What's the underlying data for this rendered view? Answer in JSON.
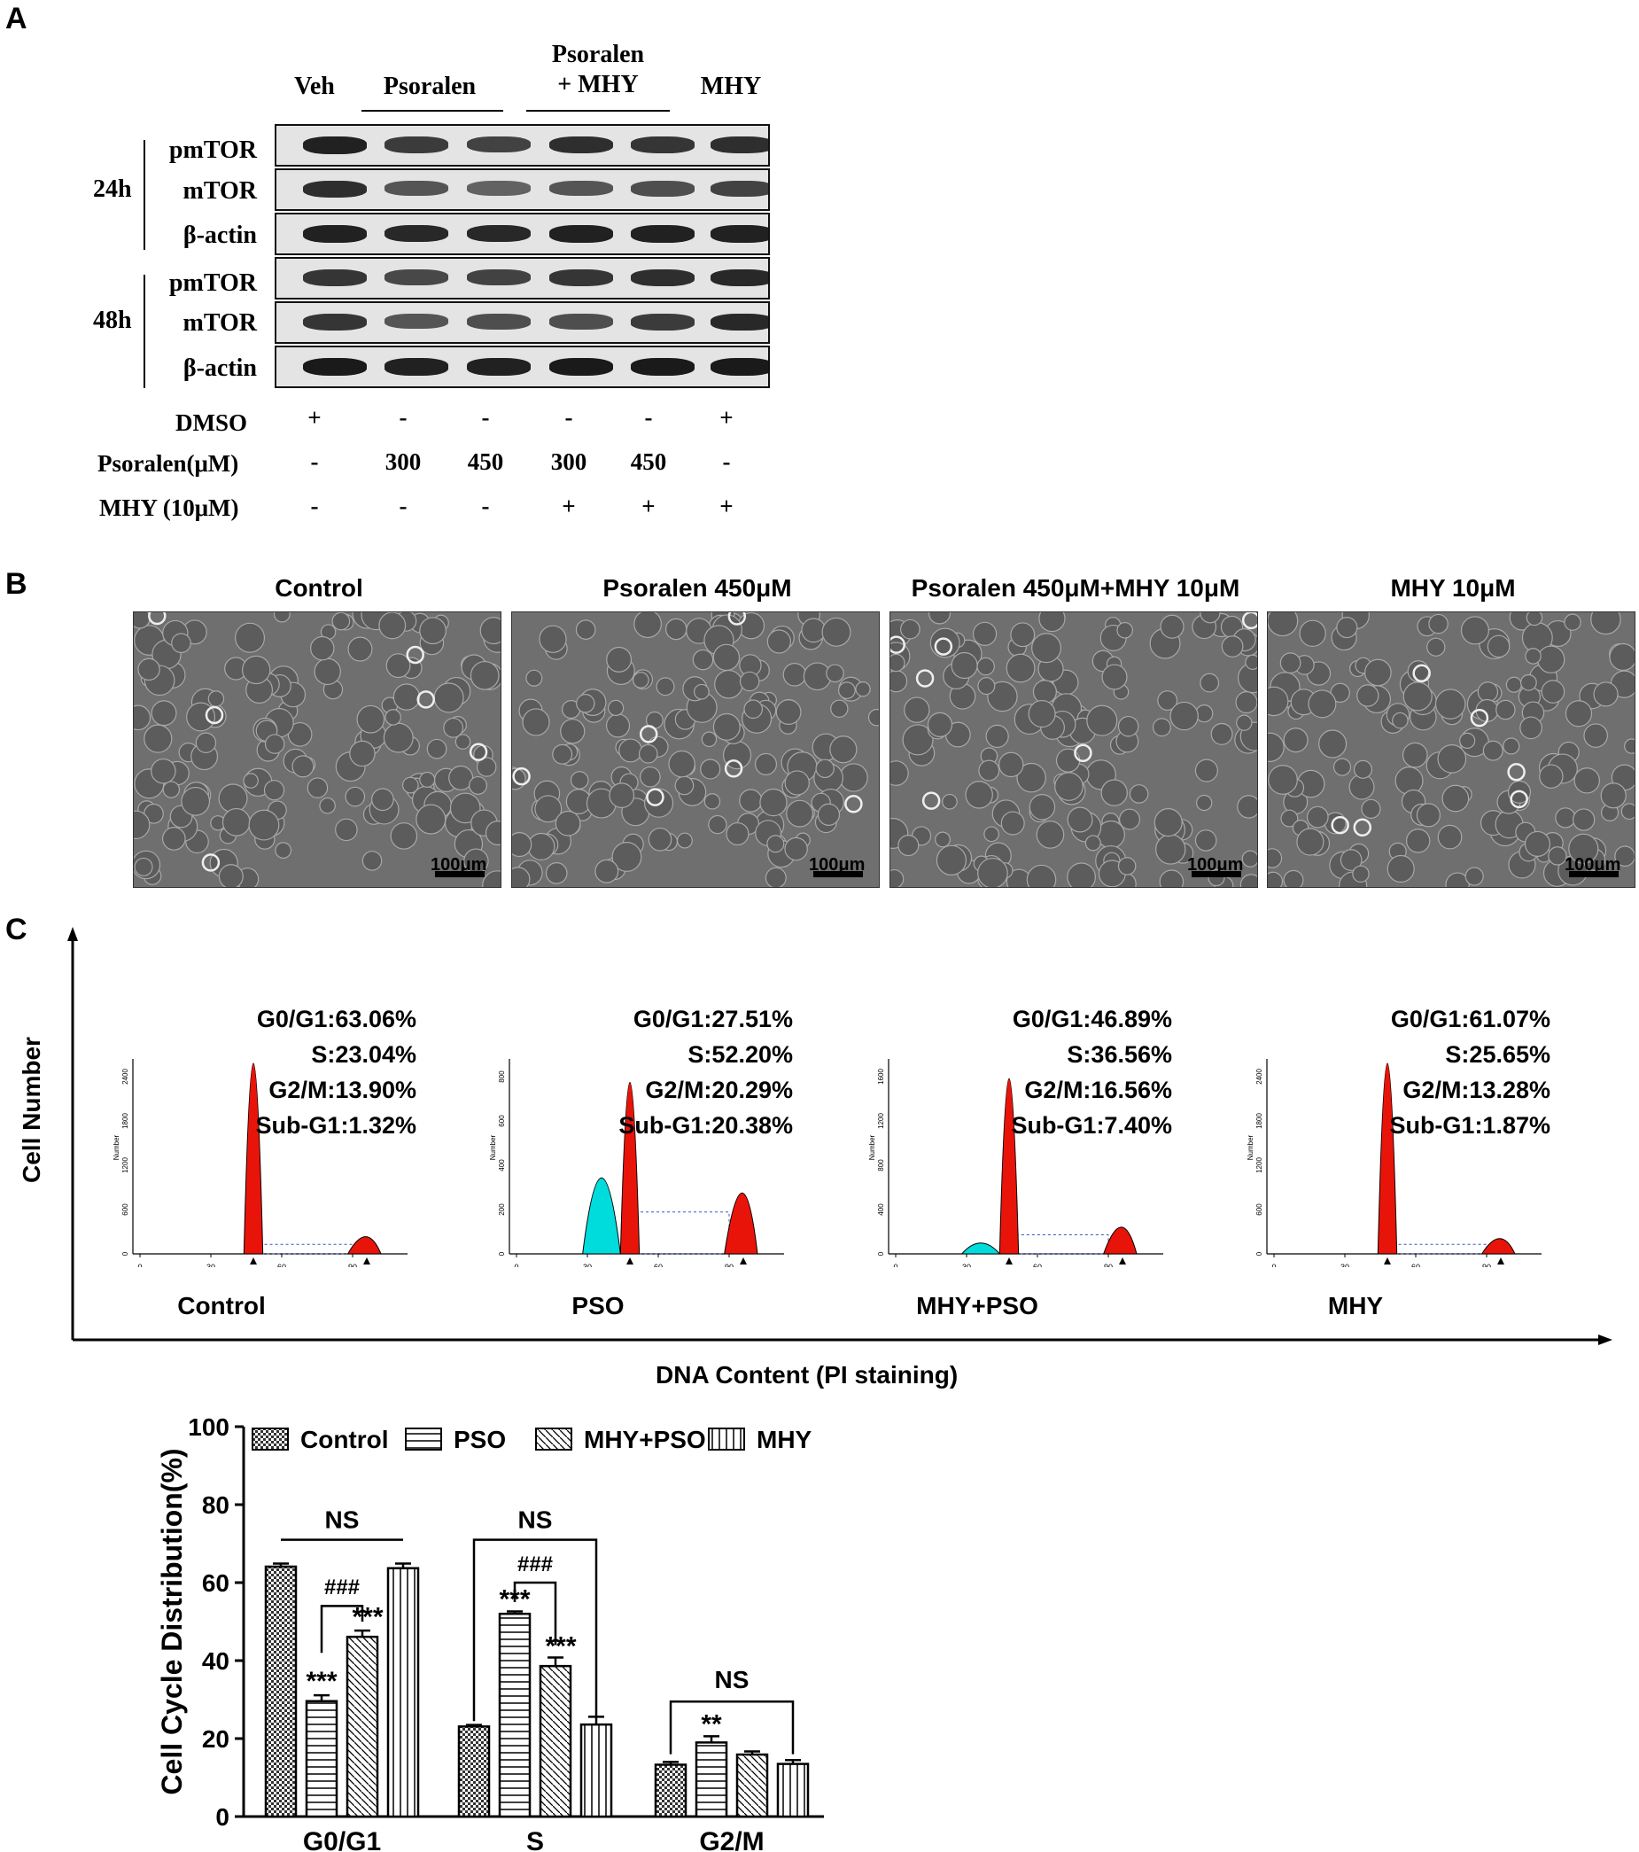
{
  "panelA": {
    "letter": "A",
    "lanes": [
      "Veh",
      "Psoralen",
      "Psoralen",
      "+ MHY",
      "MHY"
    ],
    "rows": [
      "pmTOR",
      "mTOR",
      "β-actin",
      "pmTOR",
      "mTOR",
      "β-actin"
    ],
    "timepoints": [
      "24h",
      "48h"
    ],
    "treatments": {
      "dmso": {
        "label": "DMSO",
        "values": [
          "+",
          "-",
          "-",
          "-",
          "-",
          "+"
        ]
      },
      "psoralen": {
        "label": "Psoralen(μM)",
        "values": [
          "-",
          "300",
          "450",
          "300",
          "450",
          "-"
        ]
      },
      "mhy": {
        "label": "MHY (10μM)",
        "values": [
          "-",
          "-",
          "-",
          "+",
          "+",
          "+"
        ]
      }
    }
  },
  "panelB": {
    "letter": "B",
    "images": [
      {
        "title": "Control",
        "scale": "100μm"
      },
      {
        "title": "Psoralen 450μM",
        "scale": "100μm"
      },
      {
        "title": "Psoralen 450μM+MHY 10μM",
        "scale": "100μm"
      },
      {
        "title": "MHY 10μM",
        "scale": "100μm"
      }
    ]
  },
  "panelC": {
    "letter": "C",
    "y_axis": "Cell Number",
    "x_axis": "DNA Content (PI staining)",
    "x_ticks": [
      "0",
      "30",
      "60",
      "90",
      "120"
    ],
    "y_tick_label": "Number",
    "histograms": [
      {
        "name": "Control",
        "g0g1": "G0/G1:63.06%",
        "s": "S:23.04%",
        "g2m": "G2/M:13.90%",
        "subg1": "Sub-G1:1.32%",
        "y_ticks": [
          "0",
          "600",
          "1200",
          "1800",
          "2400"
        ]
      },
      {
        "name": "PSO",
        "g0g1": "G0/G1:27.51%",
        "s": "S:52.20%",
        "g2m": "G2/M:20.29%",
        "subg1": "Sub-G1:20.38%",
        "y_ticks": [
          "0",
          "200",
          "400",
          "600",
          "800"
        ]
      },
      {
        "name": "MHY+PSO",
        "g0g1": "G0/G1:46.89%",
        "s": "S:36.56%",
        "g2m": "G2/M:16.56%",
        "subg1": "Sub-G1:7.40%",
        "y_ticks": [
          "0",
          "400",
          "800",
          "1200",
          "1600"
        ]
      },
      {
        "name": "MHY",
        "g0g1": "G0/G1:61.07%",
        "s": "S:25.65%",
        "g2m": "G2/M:13.28%",
        "subg1": "Sub-G1:1.87%",
        "y_ticks": [
          "0",
          "600",
          "1200",
          "1800",
          "2400"
        ]
      }
    ]
  },
  "chart_data": {
    "type": "bar",
    "title": "",
    "ylabel": "Cell Cycle Distribution(%)",
    "xlabel": "",
    "ylim": [
      0,
      100
    ],
    "yticks": [
      0,
      20,
      40,
      60,
      80,
      100
    ],
    "categories": [
      "G0/G1",
      "S",
      "G2/M"
    ],
    "series": [
      {
        "name": "Control",
        "values": [
          64.1,
          23.1,
          13.3
        ],
        "errors": [
          0.8,
          0.4,
          0.7
        ]
      },
      {
        "name": "PSO",
        "values": [
          29.6,
          52.0,
          19.0
        ],
        "errors": [
          1.5,
          0.6,
          1.6
        ]
      },
      {
        "name": "MHY+PSO",
        "values": [
          46.1,
          38.6,
          15.9
        ],
        "errors": [
          1.6,
          2.2,
          0.8
        ]
      },
      {
        "name": "MHY",
        "values": [
          63.7,
          23.6,
          13.5
        ],
        "errors": [
          1.2,
          2.0,
          1.0
        ]
      }
    ],
    "annotations": {
      "ns": "NS",
      "hash": "###",
      "stars3": "***",
      "stars2": "**"
    }
  }
}
